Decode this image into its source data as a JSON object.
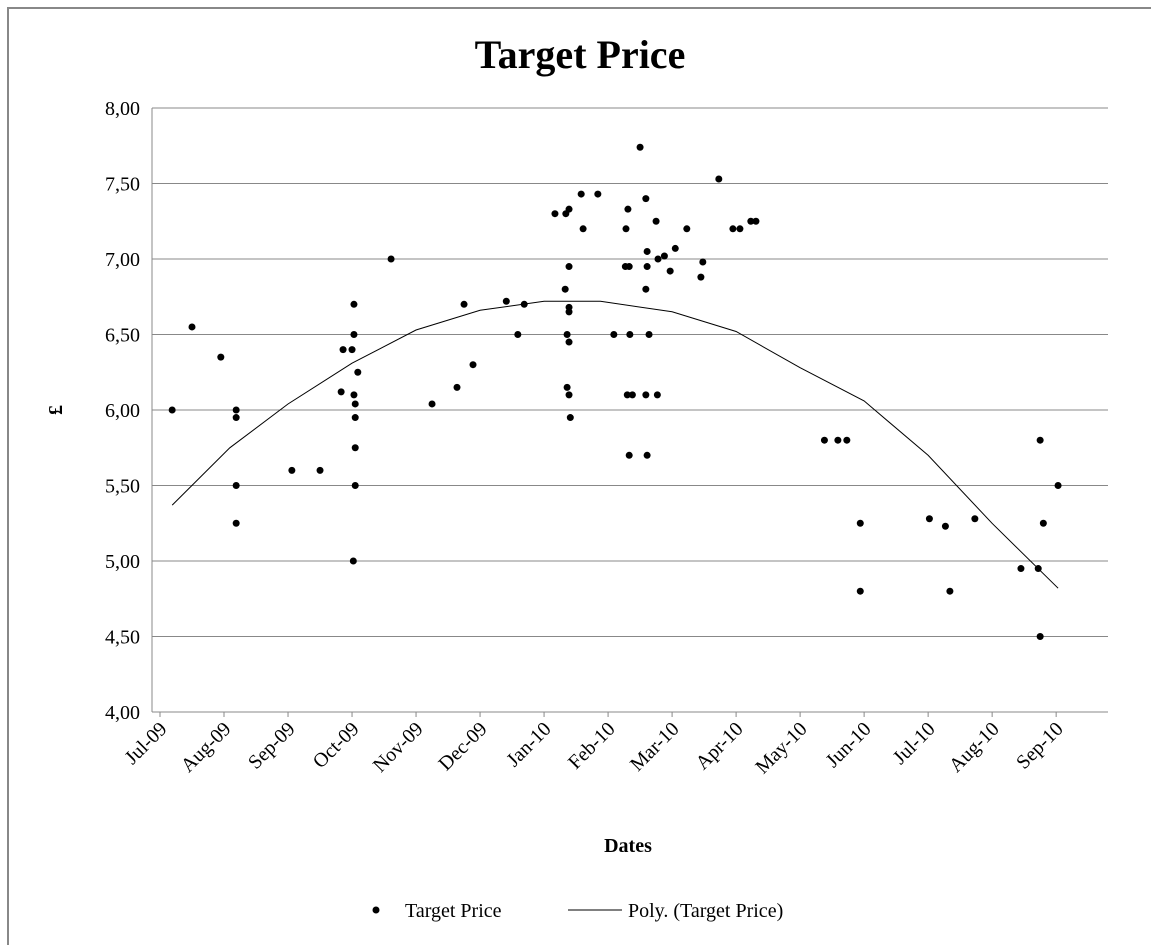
{
  "chart_data": {
    "type": "scatter",
    "title": "Target Price",
    "x_label": "Dates",
    "y_label": "£",
    "xlim": [
      -0.125,
      14.81
    ],
    "ylim": [
      4,
      8
    ],
    "xticks": [
      {
        "value": 0,
        "label": "Jul-09"
      },
      {
        "value": 1,
        "label": "Aug-09"
      },
      {
        "value": 2,
        "label": "Sep-09"
      },
      {
        "value": 3,
        "label": "Oct-09"
      },
      {
        "value": 4,
        "label": "Nov-09"
      },
      {
        "value": 5,
        "label": "Dec-09"
      },
      {
        "value": 6,
        "label": "Jan-10"
      },
      {
        "value": 7,
        "label": "Feb-10"
      },
      {
        "value": 8,
        "label": "Mar-10"
      },
      {
        "value": 9,
        "label": "Apr-10"
      },
      {
        "value": 10,
        "label": "May-10"
      },
      {
        "value": 11,
        "label": "Jun-10"
      },
      {
        "value": 12,
        "label": "Jul-10"
      },
      {
        "value": 13,
        "label": "Aug-10"
      },
      {
        "value": 14,
        "label": "Sep-10"
      }
    ],
    "yticks": [
      {
        "value": 4,
        "label": "4,00"
      },
      {
        "value": 4.5,
        "label": "4,50"
      },
      {
        "value": 5,
        "label": "5,00"
      },
      {
        "value": 5.5,
        "label": "5,50"
      },
      {
        "value": 6,
        "label": "6,00"
      },
      {
        "value": 6.5,
        "label": "6,50"
      },
      {
        "value": 7,
        "label": "7,00"
      },
      {
        "value": 7.5,
        "label": "7,50"
      },
      {
        "value": 8,
        "label": "8,00"
      }
    ],
    "grid": true,
    "series": [
      {
        "name": "Target Price",
        "type": "scatter",
        "color": "#000000",
        "x": [
          0.19,
          0.5,
          0.95,
          1.19,
          1.19,
          1.19,
          1.19,
          2.06,
          2.5,
          2.83,
          2.86,
          3.0,
          3.03,
          3.03,
          3.03,
          3.05,
          3.05,
          3.05,
          3.05,
          3.02,
          3.09,
          3.61,
          4.25,
          4.64,
          4.75,
          4.89,
          5.41,
          5.59,
          5.69,
          6.17,
          6.34,
          6.39,
          6.33,
          6.39,
          6.36,
          6.39,
          6.39,
          6.39,
          6.36,
          6.39,
          6.41,
          6.58,
          6.61,
          6.84,
          7.09,
          7.28,
          7.31,
          7.27,
          7.33,
          7.34,
          7.3,
          7.38,
          7.33,
          7.5,
          7.59,
          7.61,
          7.61,
          7.59,
          7.64,
          7.59,
          7.77,
          7.61,
          7.75,
          7.78,
          7.88,
          7.97,
          8.05,
          8.23,
          8.45,
          8.48,
          8.73,
          8.95,
          9.06,
          9.23,
          9.31,
          10.38,
          10.59,
          10.73,
          10.94,
          10.94,
          12.02,
          12.27,
          12.34,
          12.73,
          13.45,
          13.72,
          13.75,
          13.75,
          13.8,
          14.03
        ],
        "values": [
          6.0,
          6.55,
          6.35,
          6.0,
          5.95,
          5.5,
          5.25,
          5.6,
          5.6,
          6.12,
          6.4,
          6.4,
          6.7,
          6.5,
          6.1,
          6.04,
          5.95,
          5.75,
          5.5,
          5.0,
          6.25,
          7.0,
          6.04,
          6.15,
          6.7,
          6.3,
          6.72,
          6.5,
          6.7,
          7.3,
          7.3,
          7.33,
          6.8,
          6.95,
          6.5,
          6.68,
          6.65,
          6.45,
          6.15,
          6.1,
          5.95,
          7.43,
          7.2,
          7.43,
          6.5,
          7.2,
          7.33,
          6.95,
          6.95,
          6.5,
          6.1,
          6.1,
          5.7,
          7.74,
          7.4,
          7.05,
          6.95,
          6.8,
          6.5,
          6.1,
          6.1,
          5.7,
          7.25,
          7.0,
          7.02,
          6.92,
          7.07,
          7.2,
          6.88,
          6.98,
          7.53,
          7.2,
          7.2,
          7.25,
          7.25,
          5.8,
          5.8,
          5.8,
          5.25,
          4.8,
          5.28,
          5.23,
          4.8,
          5.28,
          4.95,
          4.95,
          5.8,
          4.5,
          5.25,
          5.5
        ]
      },
      {
        "name": "Poly. (Target Price)",
        "type": "line",
        "color": "#000000",
        "x": [
          0.19,
          1.09,
          2,
          3,
          4,
          5,
          6,
          6.88,
          8,
          9,
          10,
          11,
          12,
          13,
          14.03
        ],
        "values": [
          5.37,
          5.75,
          6.04,
          6.31,
          6.53,
          6.66,
          6.72,
          6.72,
          6.65,
          6.52,
          6.28,
          6.06,
          5.7,
          5.25,
          4.82
        ]
      }
    ]
  }
}
